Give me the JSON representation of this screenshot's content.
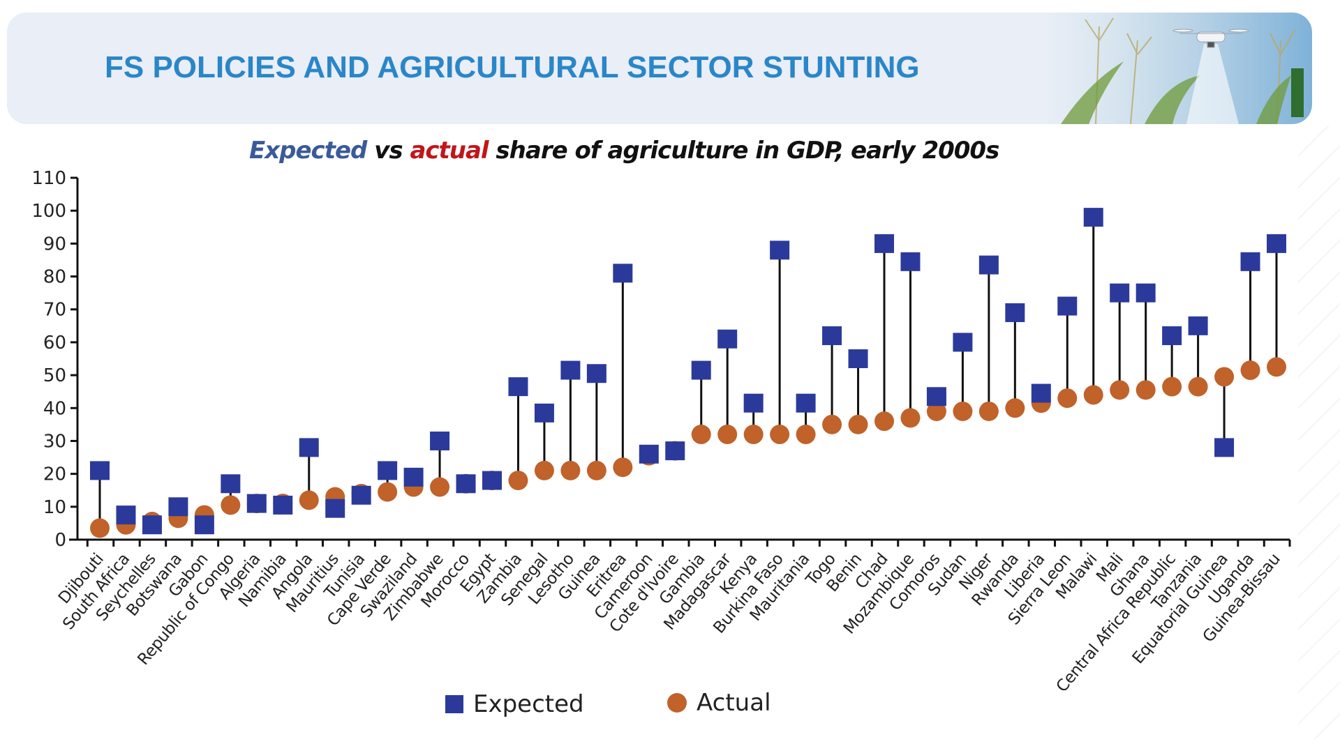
{
  "header": {
    "title": "FS POLICIES AND AGRICULTURAL SECTOR STUNTING",
    "image_description": "drone over corn field"
  },
  "chart_title": {
    "part1": "Expected",
    "part2": " vs ",
    "part3": "actual",
    "part4": " share of agriculture in GDP, early 2000s"
  },
  "legend": {
    "expected_label": "Expected",
    "actual_label": "Actual"
  },
  "colors": {
    "expected": "#2b3a9a",
    "actual": "#c0622a",
    "connector": "#111111",
    "title_blue": "#2a86c8"
  },
  "chart_data": {
    "type": "scatter",
    "subtype": "dumbbell",
    "title": "Expected vs actual share of agriculture in GDP, early 2000s",
    "xlabel": "",
    "ylabel": "",
    "ylim": [
      0,
      110
    ],
    "yticks": [
      0,
      10,
      20,
      30,
      40,
      50,
      60,
      70,
      80,
      90,
      100,
      110
    ],
    "grid": false,
    "legend_position": "bottom-center",
    "categories": [
      "Djibouti",
      "South Africa",
      "Seychelles",
      "Botswana",
      "Gabon",
      "Republic of Congo",
      "Algeria",
      "Namibia",
      "Angola",
      "Mauritius",
      "Tunisia",
      "Cape Verde",
      "Swaziland",
      "Zimbabwe",
      "Morocco",
      "Egypt",
      "Zambia",
      "Senegal",
      "Lesotho",
      "Guinea",
      "Eritrea",
      "Cameroon",
      "Cote d'Ivoire",
      "Gambia",
      "Madagascar",
      "Kenya",
      "Burkina Faso",
      "Mauritania",
      "Togo",
      "Benin",
      "Chad",
      "Mozambique",
      "Comoros",
      "Sudan",
      "Niger",
      "Rwanda",
      "Liberia",
      "Sierra Leon",
      "Malawi",
      "Mali",
      "Ghana",
      "Central Africa Republic",
      "Tanzania",
      "Equatorial Guinea",
      "Uganda",
      "Guinea-Bissau"
    ],
    "series": [
      {
        "name": "Expected",
        "marker": "square",
        "values": [
          21,
          7.5,
          4.5,
          10,
          4.5,
          17,
          11,
          10.5,
          28,
          9.5,
          13.5,
          21,
          19,
          30,
          17,
          18,
          46.5,
          38.5,
          51.5,
          50.5,
          81,
          26,
          27,
          51.5,
          61,
          41.5,
          88,
          41.5,
          62,
          55,
          90,
          84.5,
          43.5,
          60,
          83.5,
          69,
          44.5,
          71,
          98,
          75,
          75,
          62,
          65,
          28,
          84.5,
          90
        ]
      },
      {
        "name": "Actual",
        "marker": "circle",
        "values": [
          3.5,
          4.5,
          5.5,
          6.5,
          7.5,
          10.5,
          11,
          11,
          12,
          13,
          14,
          14.5,
          16,
          16,
          17,
          18,
          18,
          21,
          21,
          21,
          22,
          25.5,
          27,
          32,
          32,
          32,
          32,
          32,
          35,
          35,
          36,
          37,
          39,
          39,
          39,
          40,
          41.5,
          43,
          44,
          45.5,
          45.5,
          46.5,
          46.5,
          49.5,
          51.5,
          52.5
        ]
      }
    ]
  }
}
